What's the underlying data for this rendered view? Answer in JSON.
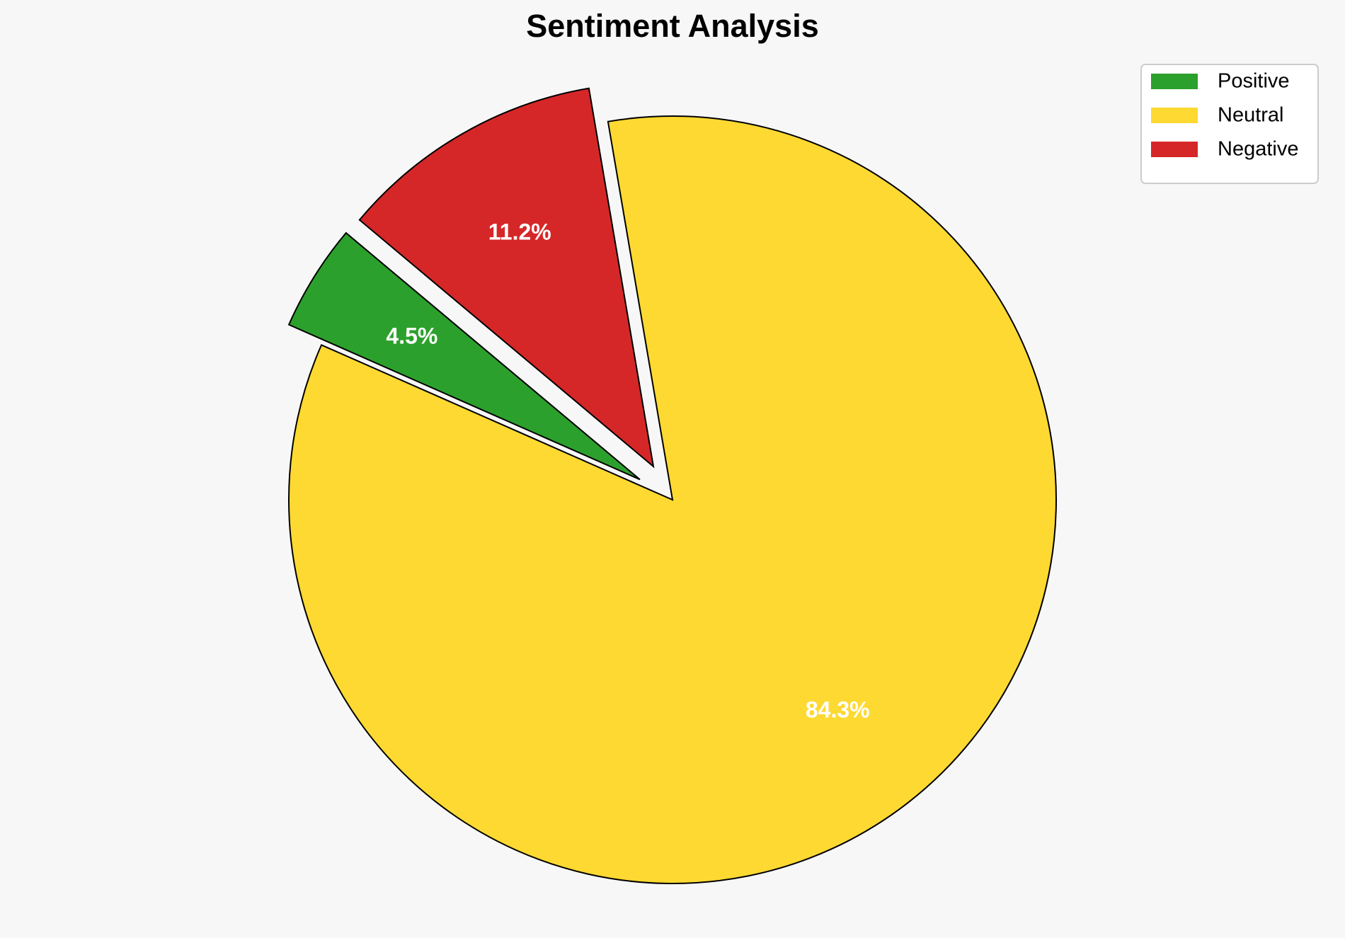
{
  "chart_data": {
    "type": "pie",
    "title": "Sentiment Analysis",
    "categories": [
      "Positive",
      "Neutral",
      "Negative"
    ],
    "values": [
      4.5,
      84.3,
      11.2
    ],
    "value_labels": [
      "4.5%",
      "84.3%",
      "11.2%"
    ],
    "colors": [
      "#2ca02c",
      "#fdd932",
      "#d62728"
    ],
    "legend": "upper right"
  }
}
